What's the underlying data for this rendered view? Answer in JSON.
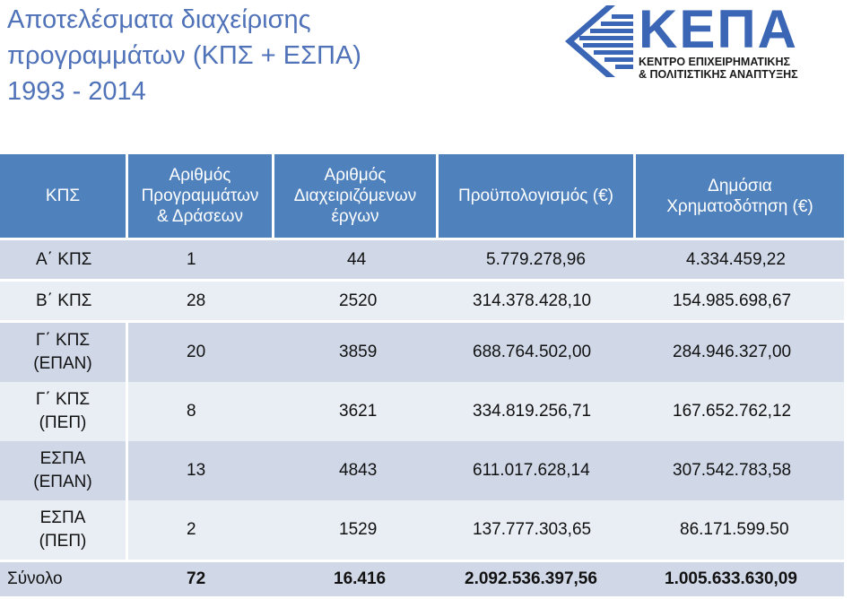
{
  "title": {
    "line1": "Αποτελέσματα διαχείρισης",
    "line2": "προγραμμάτων (ΚΠΣ + ΕΣΠΑ)",
    "line3": "1993 - 2014"
  },
  "logo": {
    "word": "ΚΕΠΑ",
    "subtitle_line1": "ΚΕΝΤΡΟ ΕΠΙΧΕΙΡΗΜΑΤΙΚΗΣ",
    "subtitle_line2": "& ΠΟΛΙΤΙΣΤΙΚΗΣ ΑΝΑΠΤΥΞΗΣ",
    "color": "#3a66b5"
  },
  "table": {
    "header": {
      "col1": "ΚΠΣ",
      "col2_l1": "Αριθμός",
      "col2_l2": "Προγραμμάτων",
      "col2_l3": "& Δράσεων",
      "col3_l1": "Αριθμός",
      "col3_l2": "Διαχειριζόμενων",
      "col3_l3": "έργων",
      "col4": "Προϋπολογισμός (€)",
      "col5_l1": "Δημόσια",
      "col5_l2": "Χρηματοδότηση (€)"
    },
    "rows": [
      {
        "label_l1": "Α΄ ΚΠΣ",
        "label_l2": "",
        "programs": "1",
        "projects": "44",
        "budget": "5.779.278,96",
        "public": "4.334.459,22"
      },
      {
        "label_l1": "Β΄ ΚΠΣ",
        "label_l2": "",
        "programs": "28",
        "projects": "2520",
        "budget": "314.378.428,10",
        "public": "154.985.698,67"
      },
      {
        "label_l1": "Γ΄ ΚΠΣ",
        "label_l2": "(ΕΠΑΝ)",
        "programs": "20",
        "projects": "3859",
        "budget": "688.764.502,00",
        "public": "284.946.327,00"
      },
      {
        "label_l1": "Γ΄ ΚΠΣ",
        "label_l2": "(ΠΕΠ)",
        "programs": "8",
        "projects": "3621",
        "budget": "334.819.256,71",
        "public": "167.652.762,12"
      },
      {
        "label_l1": "ΕΣΠΑ",
        "label_l2": "(ΕΠΑΝ)",
        "programs": "13",
        "projects": "4843",
        "budget": "611.017.628,14",
        "public": "307.542.783,58"
      },
      {
        "label_l1": "ΕΣΠΑ",
        "label_l2": "(ΠΕΠ)",
        "programs": "2",
        "projects": "1529",
        "budget": "137.777.303,65",
        "public": "86.171.599.50"
      }
    ],
    "total": {
      "label": "Σύνολο",
      "programs": "72",
      "projects": "16.416",
      "budget": "2.092.536.397,56",
      "public": "1.005.633.630,09"
    },
    "colors": {
      "header": "#4f81bd",
      "row_dark": "#d0d8e8",
      "row_light": "#e9edf4"
    }
  }
}
